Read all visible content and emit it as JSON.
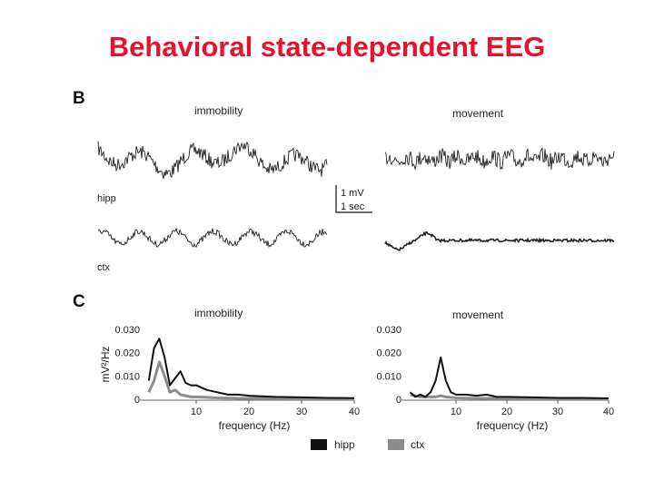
{
  "title": "Behavioral state-dependent EEG",
  "panel_b": {
    "label": "B",
    "immobility_label": "immobility",
    "movement_label": "movement",
    "hipp_label": "hipp",
    "ctx_label": "ctx",
    "scale_voltage": "1 mV",
    "scale_time": "1 sec"
  },
  "panel_c": {
    "label": "C",
    "immobility_label": "immobility",
    "movement_label": "movement",
    "ylabel": "mV²/Hz",
    "xlabel": "frequency (Hz)",
    "legend": [
      "hipp",
      "ctx"
    ],
    "colors": {
      "hipp": "#111111",
      "ctx": "#8c8c8c"
    }
  },
  "chart_data": [
    {
      "type": "line",
      "title": "immobility",
      "xlabel": "frequency (Hz)",
      "ylabel": "mV²/Hz",
      "xlim": [
        0,
        40
      ],
      "ylim": [
        0,
        0.03
      ],
      "x_ticks": [
        "10",
        "20",
        "30",
        "40"
      ],
      "y_ticks": [
        "0",
        "0.010",
        "0.020",
        "0.030"
      ],
      "series": [
        {
          "name": "hipp",
          "x": [
            1,
            2,
            3,
            4,
            5,
            6,
            7,
            8,
            9,
            10,
            12,
            14,
            16,
            18,
            20,
            25,
            30,
            35,
            40
          ],
          "values": [
            0.008,
            0.022,
            0.026,
            0.018,
            0.006,
            0.009,
            0.012,
            0.007,
            0.006,
            0.006,
            0.004,
            0.003,
            0.002,
            0.002,
            0.0015,
            0.001,
            0.0008,
            0.0006,
            0.0005
          ]
        },
        {
          "name": "ctx",
          "x": [
            1,
            2,
            3,
            4,
            5,
            6,
            7,
            8,
            9,
            10,
            12,
            14,
            16,
            18,
            20,
            25,
            30,
            35,
            40
          ],
          "values": [
            0.003,
            0.008,
            0.016,
            0.01,
            0.003,
            0.004,
            0.002,
            0.0015,
            0.001,
            0.001,
            0.0008,
            0.0006,
            0.0005,
            0.0004,
            0.0004,
            0.0003,
            0.0002,
            0.0002,
            0.0002
          ]
        }
      ]
    },
    {
      "type": "line",
      "title": "movement",
      "xlabel": "frequency (Hz)",
      "ylabel": "",
      "xlim": [
        0,
        40
      ],
      "ylim": [
        0,
        0.03
      ],
      "x_ticks": [
        "10",
        "20",
        "30",
        "40"
      ],
      "y_ticks": [
        "0",
        "0.010",
        "0.020",
        "0.030"
      ],
      "series": [
        {
          "name": "hipp",
          "x": [
            1,
            2,
            3,
            4,
            5,
            6,
            7,
            8,
            9,
            10,
            12,
            14,
            16,
            18,
            20,
            25,
            30,
            35,
            40
          ],
          "values": [
            0.003,
            0.001,
            0.002,
            0.001,
            0.003,
            0.008,
            0.018,
            0.008,
            0.003,
            0.002,
            0.002,
            0.0015,
            0.002,
            0.001,
            0.001,
            0.0008,
            0.0006,
            0.0006,
            0.0004
          ]
        },
        {
          "name": "ctx",
          "x": [
            1,
            2,
            3,
            4,
            5,
            6,
            7,
            8,
            9,
            10,
            12,
            14,
            16,
            18,
            20,
            25,
            30,
            35,
            40
          ],
          "values": [
            0.002,
            0.0015,
            0.001,
            0.001,
            0.001,
            0.001,
            0.0015,
            0.001,
            0.0008,
            0.0006,
            0.0005,
            0.0004,
            0.0004,
            0.0003,
            0.0003,
            0.0002,
            0.0002,
            0.0002,
            0.0002
          ]
        }
      ]
    }
  ]
}
